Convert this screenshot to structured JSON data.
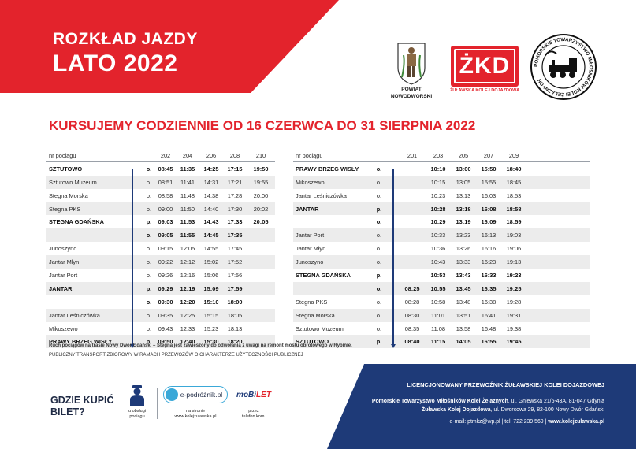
{
  "header": {
    "title_line1": "ROZKŁAD JAZDY",
    "title_line2": "LATO 2022"
  },
  "logos": {
    "powiat_line1": "POWIAT",
    "powiat_line2": "NOWODWORSKI",
    "zkd_mark": "ŻKD",
    "zkd_caption": "ŻUŁAWSKA KOLEJ DOJAZDOWA",
    "ptmkz_ring_text": "POMORSKIE TOWARZYSTWO MIŁOŚNIKÓW KOLEI ŻELAZNYCH"
  },
  "heading": "KURSUJEMY CODZIENNIE OD 16 CZERWCA DO 31 SIERPNIA 2022",
  "left_table": {
    "header_label": "nr pociągu",
    "trains": [
      "202",
      "204",
      "206",
      "208",
      "210"
    ],
    "rows": [
      {
        "station": "SZTUTOWO",
        "op": "o.",
        "times": [
          "08:45",
          "11:35",
          "14:25",
          "17:15",
          "19:50"
        ],
        "bold": true
      },
      {
        "station": "Sztutowo Muzeum",
        "op": "o.",
        "times": [
          "08:51",
          "11:41",
          "14:31",
          "17:21",
          "19:55"
        ],
        "bold": false
      },
      {
        "station": "Stegna Morska",
        "op": "o.",
        "times": [
          "08:58",
          "11:48",
          "14:38",
          "17:28",
          "20:00"
        ],
        "bold": false
      },
      {
        "station": "Stegna PKS",
        "op": "o.",
        "times": [
          "09:00",
          "11:50",
          "14:40",
          "17:30",
          "20:02"
        ],
        "bold": false
      },
      {
        "station": "STEGNA GDAŃSKA",
        "op": "p.",
        "times": [
          "09:03",
          "11:53",
          "14:43",
          "17:33",
          "20:05"
        ],
        "bold": true
      },
      {
        "station": "",
        "op": "o.",
        "times": [
          "09:05",
          "11:55",
          "14:45",
          "17:35",
          ""
        ],
        "bold": true
      },
      {
        "station": "Junoszyno",
        "op": "o.",
        "times": [
          "09:15",
          "12:05",
          "14:55",
          "17:45",
          ""
        ],
        "bold": false
      },
      {
        "station": "Jantar Młyn",
        "op": "o.",
        "times": [
          "09:22",
          "12:12",
          "15:02",
          "17:52",
          ""
        ],
        "bold": false
      },
      {
        "station": "Jantar Port",
        "op": "o.",
        "times": [
          "09:26",
          "12:16",
          "15:06",
          "17:56",
          ""
        ],
        "bold": false
      },
      {
        "station": "JANTAR",
        "op": "p.",
        "times": [
          "09:29",
          "12:19",
          "15:09",
          "17:59",
          ""
        ],
        "bold": true
      },
      {
        "station": "",
        "op": "o.",
        "times": [
          "09:30",
          "12:20",
          "15:10",
          "18:00",
          ""
        ],
        "bold": true
      },
      {
        "station": "Jantar Leśniczówka",
        "op": "o.",
        "times": [
          "09:35",
          "12:25",
          "15:15",
          "18:05",
          ""
        ],
        "bold": false
      },
      {
        "station": "Mikoszewo",
        "op": "o.",
        "times": [
          "09:43",
          "12:33",
          "15:23",
          "18:13",
          ""
        ],
        "bold": false
      },
      {
        "station": "PRAWY BRZEG WISŁY",
        "op": "p.",
        "times": [
          "09:50",
          "12:40",
          "15:30",
          "18:20",
          ""
        ],
        "bold": true
      }
    ]
  },
  "right_table": {
    "header_label": "nr pociągu",
    "trains": [
      "201",
      "203",
      "205",
      "207",
      "209"
    ],
    "rows": [
      {
        "station": "PRAWY BRZEG WISŁY",
        "op": "o.",
        "times": [
          "",
          "10:10",
          "13:00",
          "15:50",
          "18:40"
        ],
        "bold": true
      },
      {
        "station": "Mikoszewo",
        "op": "o.",
        "times": [
          "",
          "10:15",
          "13:05",
          "15:55",
          "18:45"
        ],
        "bold": false
      },
      {
        "station": "Jantar Leśniczówka",
        "op": "o.",
        "times": [
          "",
          "10:23",
          "13:13",
          "16:03",
          "18:53"
        ],
        "bold": false
      },
      {
        "station": "JANTAR",
        "op": "p.",
        "times": [
          "",
          "10:28",
          "13:18",
          "16:08",
          "18:58"
        ],
        "bold": true
      },
      {
        "station": "",
        "op": "o.",
        "times": [
          "",
          "10:29",
          "13:19",
          "16:09",
          "18:59"
        ],
        "bold": true
      },
      {
        "station": "Jantar Port",
        "op": "o.",
        "times": [
          "",
          "10:33",
          "13:23",
          "16:13",
          "19:03"
        ],
        "bold": false
      },
      {
        "station": "Jantar Młyn",
        "op": "o.",
        "times": [
          "",
          "10:36",
          "13:26",
          "16:16",
          "19:06"
        ],
        "bold": false
      },
      {
        "station": "Junoszyno",
        "op": "o.",
        "times": [
          "",
          "10:43",
          "13:33",
          "16:23",
          "19:13"
        ],
        "bold": false
      },
      {
        "station": "STEGNA GDAŃSKA",
        "op": "p.",
        "times": [
          "",
          "10:53",
          "13:43",
          "16:33",
          "19:23"
        ],
        "bold": true
      },
      {
        "station": "",
        "op": "o.",
        "times": [
          "08:25",
          "10:55",
          "13:45",
          "16:35",
          "19:25"
        ],
        "bold": true
      },
      {
        "station": "Stegna PKS",
        "op": "o.",
        "times": [
          "08:28",
          "10:58",
          "13:48",
          "16:38",
          "19:28"
        ],
        "bold": false
      },
      {
        "station": "Stegna Morska",
        "op": "o.",
        "times": [
          "08:30",
          "11:01",
          "13:51",
          "16:41",
          "19:31"
        ],
        "bold": false
      },
      {
        "station": "Sztutowo Muzeum",
        "op": "o.",
        "times": [
          "08:35",
          "11:08",
          "13:58",
          "16:48",
          "19:38"
        ],
        "bold": false
      },
      {
        "station": "SZTUTOWO",
        "op": "p.",
        "times": [
          "08:40",
          "11:15",
          "14:05",
          "16:55",
          "19:45"
        ],
        "bold": true
      }
    ]
  },
  "notes": {
    "line1": "Ruch pociągów na trasie Nowy Dwór Gdański – Stegna jest zawieszony do odwołania z uwagi na remont mostu obrotowego w Rybinie.",
    "line2": "PUBLICZNY  TRANSPORT ZBIOROWY W RAMACH PRZEWOZÓW O CHARAKTERZE UŻYTECZNOŚCI PUBLICZNEJ"
  },
  "tickets": {
    "label_line1": "GDZIE KUPIĆ",
    "label_line2": "BILET?",
    "option1_line1": "u obsługi",
    "option1_line2": "pociągu",
    "option2_logo": "e-podróżnik.pl",
    "option2_line1": "na stronie",
    "option2_line2": "www.kolejzulawska.pl",
    "option3_logo_a": "moBi",
    "option3_logo_b": "LET",
    "option3_line1": "przez",
    "option3_line2": "telefon kom."
  },
  "carrier": {
    "title": "LICENCJONOWANY PRZEWOŹNIK ŻUŁAWSKIEJ KOLEI DOJAZDOWEJ",
    "org1_name": "Pomorskie Towarzystwo Miłośników Kolei Żelaznych",
    "org1_addr": ", ul. Gniewska 21/6-43A, 81-047 Gdynia",
    "org2_name": "Żuławska Kolej Dojazdowa",
    "org2_addr": ", ul. Dworcowa 29, 82-100 Nowy Dwór Gdański",
    "contact": "e-mail: ptmkz@wp.pl   |   tel. 722  239  569   |",
    "website": "www.kolejzulawska.pl"
  },
  "colors": {
    "brand_red": "#e3232c",
    "brand_blue": "#1e3a78"
  }
}
